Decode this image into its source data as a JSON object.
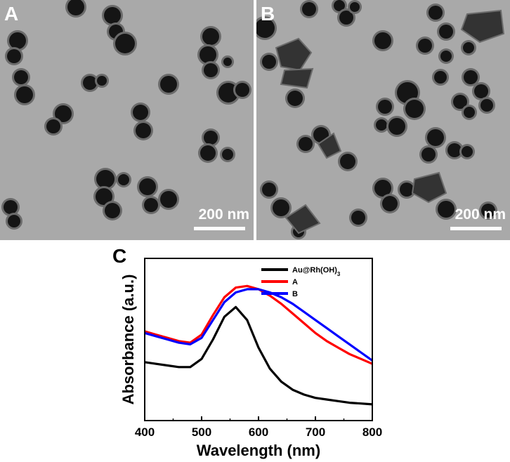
{
  "panel_a": {
    "letter": "A",
    "scale_label": "200 nm"
  },
  "panel_b": {
    "letter": "B",
    "scale_label": "200 nm"
  },
  "chart_data": {
    "type": "line",
    "panel_letter": "C",
    "xlabel": "Wavelength (nm)",
    "ylabel": "Absorbance (a.u.)",
    "xlim": [
      400,
      800
    ],
    "xticks": [
      400,
      500,
      600,
      700,
      800
    ],
    "ylim": [
      0,
      1
    ],
    "y_ticklabels": false,
    "grid": false,
    "legend_position": "top-right",
    "x": [
      400,
      420,
      440,
      460,
      480,
      500,
      520,
      540,
      560,
      580,
      600,
      620,
      640,
      660,
      680,
      700,
      720,
      740,
      760,
      780,
      800
    ],
    "series": [
      {
        "name": "Au@Rh(OH)",
        "name_subscript": "3",
        "color": "#000000",
        "values": [
          0.36,
          0.35,
          0.34,
          0.33,
          0.33,
          0.38,
          0.5,
          0.64,
          0.7,
          0.62,
          0.45,
          0.32,
          0.24,
          0.19,
          0.16,
          0.14,
          0.13,
          0.12,
          0.11,
          0.105,
          0.1
        ]
      },
      {
        "name": "A",
        "color": "#ff0000",
        "values": [
          0.55,
          0.53,
          0.51,
          0.49,
          0.48,
          0.53,
          0.65,
          0.76,
          0.82,
          0.83,
          0.81,
          0.77,
          0.72,
          0.66,
          0.6,
          0.54,
          0.49,
          0.45,
          0.41,
          0.38,
          0.35
        ]
      },
      {
        "name": "B",
        "color": "#0000ff",
        "values": [
          0.54,
          0.52,
          0.5,
          0.48,
          0.47,
          0.51,
          0.62,
          0.73,
          0.79,
          0.81,
          0.81,
          0.79,
          0.76,
          0.72,
          0.67,
          0.62,
          0.57,
          0.52,
          0.47,
          0.42,
          0.37
        ]
      }
    ]
  }
}
